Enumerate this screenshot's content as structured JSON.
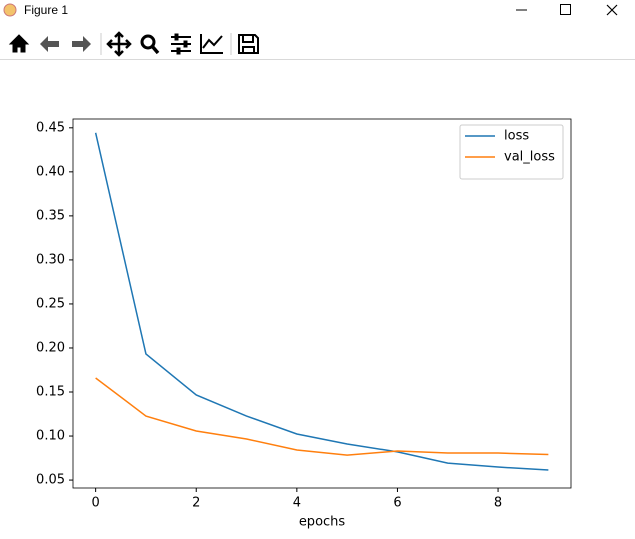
{
  "window": {
    "title": "Figure 1"
  },
  "chart_data": {
    "type": "line",
    "xlabel": "epochs",
    "x": [
      0,
      1,
      2,
      3,
      4,
      5,
      6,
      7,
      8,
      9
    ],
    "series": [
      {
        "name": "loss",
        "color": "#1f77b4",
        "values": [
          0.4443,
          0.1932,
          0.1466,
          0.1227,
          0.1023,
          0.091,
          0.082,
          0.0693,
          0.0648,
          0.0614
        ]
      },
      {
        "name": "val_loss",
        "color": "#ff7f0e",
        "values": [
          0.1659,
          0.1227,
          0.1057,
          0.0966,
          0.0841,
          0.0784,
          0.083,
          0.0807,
          0.0807,
          0.079
        ]
      }
    ],
    "xlim": [
      -0.45,
      9.45
    ],
    "ylim": [
      0.041,
      0.46
    ],
    "xticks": [
      0,
      2,
      4,
      6,
      8
    ],
    "yticks": [
      0.05,
      {
        "value": 0.1,
        "label": "0.10"
      },
      0.15,
      {
        "value": 0.2,
        "label": "0.20"
      },
      0.25,
      {
        "value": 0.3,
        "label": "0.30"
      },
      0.35,
      {
        "value": 0.4,
        "label": "0.40"
      },
      0.45
    ],
    "legend": "upper right"
  }
}
